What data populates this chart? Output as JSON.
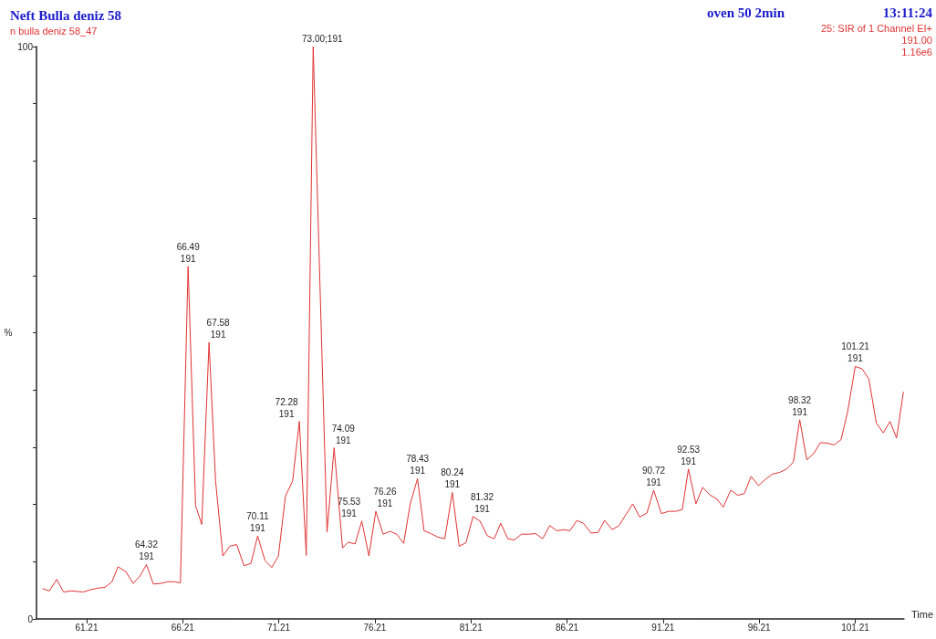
{
  "chart_data": {
    "type": "line",
    "title": "Neft Bulla deniz 58",
    "subtitle": "n bulla deniz 58_47",
    "xlabel": "Time",
    "ylabel": "%",
    "color": "#e03232",
    "marker": "none",
    "grid": false,
    "x": [
      58.91,
      59.27,
      59.65,
      60.01,
      60.41,
      60.72,
      61.03,
      61.42,
      61.82,
      62.16,
      62.53,
      62.84,
      63.24,
      63.63,
      63.99,
      64.32,
      64.68,
      65.07,
      65.43,
      65.75,
      66.09,
      66.49,
      66.88,
      67.2,
      67.58,
      67.92,
      68.3,
      68.66,
      69.02,
      69.4,
      69.76,
      70.11,
      70.49,
      70.85,
      71.19,
      71.56,
      71.93,
      72.28,
      72.64,
      73.0,
      73.72,
      74.09,
      74.53,
      74.82,
      75.18,
      75.53,
      75.9,
      76.26,
      76.64,
      77.0,
      77.35,
      77.71,
      78.05,
      78.43,
      78.77,
      79.13,
      79.48,
      79.85,
      80.24,
      80.6,
      80.95,
      81.32,
      81.68,
      82.07,
      82.42,
      82.76,
      83.13,
      83.47,
      83.84,
      84.2,
      84.58,
      84.94,
      85.31,
      85.68,
      86.04,
      86.36,
      86.72,
      87.07,
      87.46,
      87.82,
      88.17,
      88.56,
      88.92,
      89.27,
      89.63,
      89.99,
      90.37,
      90.72,
      91.12,
      91.51,
      91.86,
      92.21,
      92.53,
      92.92,
      93.27,
      93.63,
      94.03,
      94.34,
      94.73,
      95.09,
      95.44,
      95.79,
      96.18,
      96.54,
      96.9,
      97.28,
      97.64,
      97.99,
      98.32,
      98.69,
      99.05,
      99.4,
      99.76,
      100.11,
      100.47,
      100.81,
      101.21,
      101.57,
      101.92,
      102.31,
      102.67,
      103.02,
      103.36,
      103.72
    ],
    "values": [
      5.3,
      4.9,
      6.9,
      4.7,
      4.9,
      4.8,
      4.7,
      5.1,
      5.4,
      5.5,
      6.5,
      9.1,
      8.3,
      6.2,
      7.5,
      9.5,
      6.1,
      6.2,
      6.5,
      6.5,
      6.3,
      61.6,
      19.8,
      16.5,
      48.3,
      24.1,
      11.0,
      12.7,
      13.0,
      9.3,
      9.7,
      14.5,
      10.2,
      9.0,
      11.0,
      21.5,
      24.1,
      34.5,
      11.1,
      100,
      15.2,
      29.9,
      12.4,
      13.4,
      13.1,
      17.1,
      11.0,
      18.8,
      14.8,
      15.3,
      14.8,
      13.2,
      20.1,
      24.5,
      15.4,
      14.9,
      14.3,
      14.0,
      22.1,
      12.7,
      13.3,
      17.9,
      17.1,
      14.5,
      14.0,
      16.7,
      14.0,
      13.8,
      14.8,
      14.8,
      14.9,
      14.0,
      16.3,
      15.4,
      15.6,
      15.4,
      17.2,
      16.7,
      15.0,
      15.1,
      17.2,
      15.6,
      16.3,
      18.2,
      20.1,
      17.8,
      18.5,
      22.5,
      18.4,
      18.8,
      18.8,
      19.1,
      26.2,
      20.1,
      23.0,
      21.7,
      20.9,
      19.5,
      22.5,
      21.6,
      21.9,
      24.9,
      23.3,
      24.4,
      25.3,
      25.6,
      26.2,
      27.4,
      34.8,
      27.8,
      28.9,
      30.8,
      30.7,
      30.4,
      31.3,
      36.1,
      44.1,
      43.7,
      41.9,
      34.2,
      32.5,
      34.5,
      31.6,
      39.7
    ],
    "xlim": [
      58.6,
      103.75
    ],
    "xticks": [
      61.21,
      66.21,
      71.21,
      76.21,
      81.21,
      86.21,
      91.21,
      96.21,
      101.21
    ],
    "ylim": [
      0,
      100
    ],
    "yticks": [
      0,
      {
        "value": 10,
        "label": null
      },
      {
        "value": 20,
        "label": null
      },
      {
        "value": 30,
        "label": null
      },
      {
        "value": 40,
        "label": null
      },
      {
        "value": 50,
        "label": null
      },
      {
        "value": 60,
        "label": null
      },
      {
        "value": 70,
        "label": null
      },
      {
        "value": 80,
        "label": null
      },
      {
        "value": 90,
        "label": null
      },
      100
    ],
    "annotations": [
      "oven 50 2min",
      "13:11:24",
      "25: SIR of 1 Channel EI+",
      "191.00",
      "1.16e6",
      {
        "text": "64.32\n191",
        "x": 64.32,
        "y": 9.5
      },
      {
        "text": "66.49\n191",
        "x": 66.49,
        "y": 61.6
      },
      {
        "text": "67.58\n191",
        "x": 67.58,
        "y": 48.3
      },
      {
        "text": "70.11\n191",
        "x": 70.11,
        "y": 14.5
      },
      {
        "text": "72.28\n191",
        "x": 72.28,
        "y": 34.5
      },
      {
        "text": "73.00;191",
        "x": 73.0,
        "y": 100
      },
      {
        "text": "74.09\n191",
        "x": 74.09,
        "y": 29.9
      },
      {
        "text": "75.53\n191",
        "x": 75.53,
        "y": 17.1
      },
      {
        "text": "76.26\n191",
        "x": 76.26,
        "y": 18.8
      },
      {
        "text": "78.43\n191",
        "x": 78.43,
        "y": 24.5
      },
      {
        "text": "80.24\n191",
        "x": 80.24,
        "y": 22.1
      },
      {
        "text": "81.32\n191",
        "x": 81.32,
        "y": 17.9
      },
      {
        "text": "90.72\n191",
        "x": 90.72,
        "y": 22.5
      },
      {
        "text": "92.53\n191",
        "x": 92.53,
        "y": 26.2
      },
      {
        "text": "98.32\n191",
        "x": 98.32,
        "y": 34.8
      },
      {
        "text": "101.21\n191",
        "x": 101.21,
        "y": 44.1
      }
    ]
  }
}
